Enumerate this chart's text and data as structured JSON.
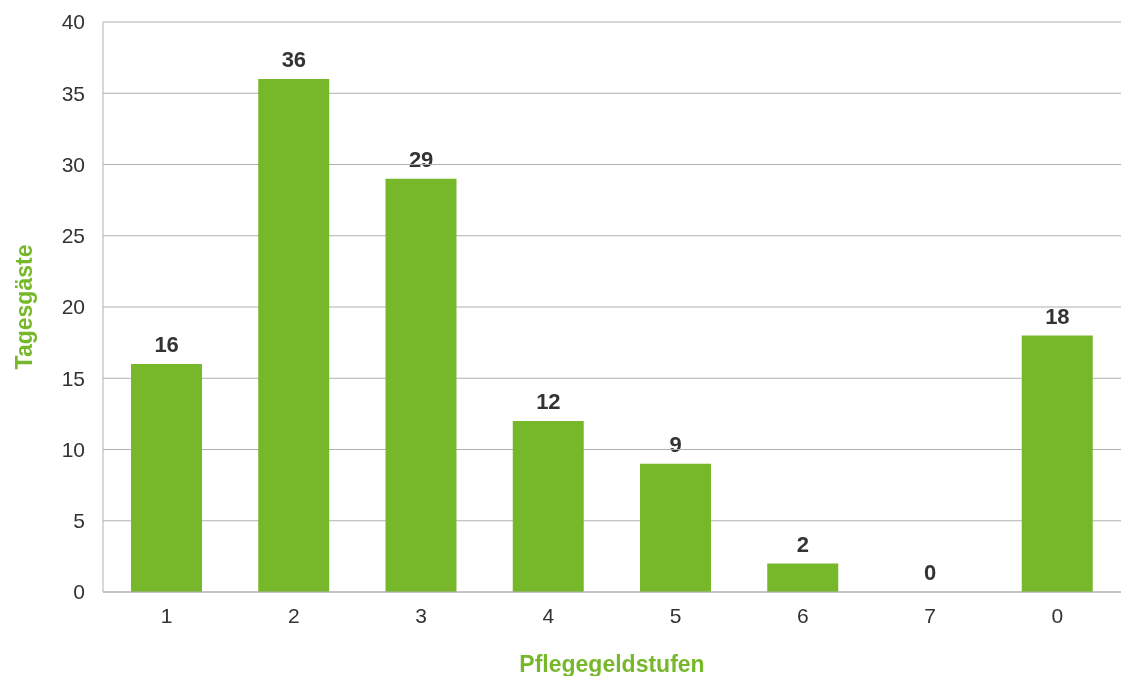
{
  "chart_data": {
    "type": "bar",
    "xlabel": "Pflegegeldstufen",
    "ylabel": "Tagesgäste",
    "categories": [
      "1",
      "2",
      "3",
      "4",
      "5",
      "6",
      "7",
      "0"
    ],
    "values": [
      16,
      36,
      29,
      12,
      9,
      2,
      0,
      18
    ],
    "color": "#77b82a",
    "ylim": [
      0,
      40
    ],
    "yticks": [
      0,
      5,
      10,
      15,
      20,
      25,
      30,
      35,
      40
    ],
    "grid": "y",
    "data_labels": true
  }
}
